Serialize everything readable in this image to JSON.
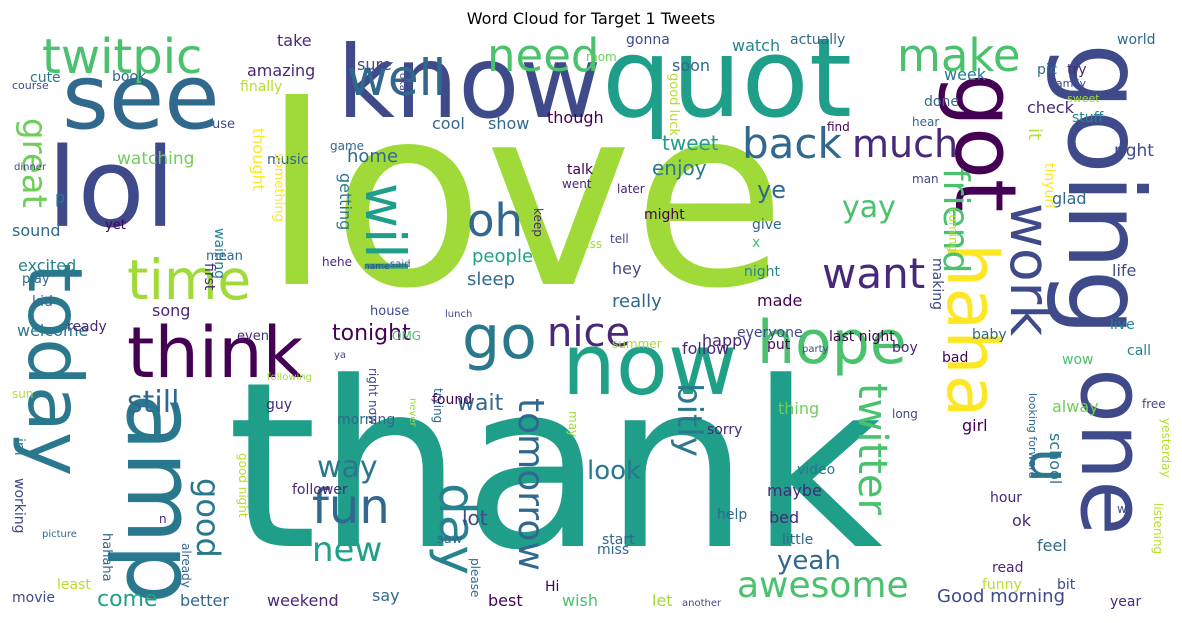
{
  "title": "Word Cloud for Target 1 Tweets",
  "palette": "viridis",
  "words": [
    {
      "text": "love",
      "c": "#a0da39"
    },
    {
      "text": "thank",
      "c": "#1f9e89"
    },
    {
      "text": "quot",
      "c": "#1f9e89"
    },
    {
      "text": "know",
      "c": "#3e4a89"
    },
    {
      "text": "see",
      "c": "#31688e"
    },
    {
      "text": "lol",
      "c": "#3e4a89"
    },
    {
      "text": "now",
      "c": "#1fa187"
    },
    {
      "text": "going",
      "c": "#3e4a89"
    },
    {
      "text": "today",
      "c": "#2a788e"
    },
    {
      "text": "amp",
      "c": "#2a788e"
    },
    {
      "text": "one",
      "c": "#3e4a89"
    },
    {
      "text": "think",
      "c": "#440154"
    },
    {
      "text": "got",
      "c": "#440154"
    },
    {
      "text": "haha",
      "c": "#fde725"
    },
    {
      "text": "time",
      "c": "#a0da39"
    },
    {
      "text": "hope",
      "c": "#4ac16d"
    },
    {
      "text": "twitpic",
      "c": "#4ac16d"
    },
    {
      "text": "work",
      "c": "#3e4a89"
    },
    {
      "text": "u",
      "c": "#2a788e"
    },
    {
      "text": "well",
      "c": "#31688e"
    },
    {
      "text": "need",
      "c": "#4ac16d"
    },
    {
      "text": "make",
      "c": "#4ac16d"
    },
    {
      "text": "back",
      "c": "#31688e"
    },
    {
      "text": "much",
      "c": "#482878"
    },
    {
      "text": "go",
      "c": "#2a788e"
    },
    {
      "text": "will",
      "c": "#1f9e89"
    },
    {
      "text": "oh",
      "c": "#31688e"
    },
    {
      "text": "want",
      "c": "#482878"
    },
    {
      "text": "day",
      "c": "#26828e"
    },
    {
      "text": "fun",
      "c": "#31688e"
    },
    {
      "text": "nice",
      "c": "#482878"
    },
    {
      "text": "awesome",
      "c": "#4ac16d"
    },
    {
      "text": "twitter",
      "c": "#4ac16d"
    },
    {
      "text": "friend",
      "c": "#4ac16d"
    },
    {
      "text": "good",
      "c": "#2a788e"
    },
    {
      "text": "great",
      "c": "#6ece58"
    },
    {
      "text": "tomorrow",
      "c": "#31688e"
    },
    {
      "text": "bitly",
      "c": "#2a788e"
    },
    {
      "text": "yay",
      "c": "#4ac16d"
    },
    {
      "text": "new",
      "c": "#1fa187"
    },
    {
      "text": "way",
      "c": "#2a788e"
    },
    {
      "text": "still",
      "c": "#31688e"
    },
    {
      "text": "tonight",
      "c": "#440154"
    },
    {
      "text": "look",
      "c": "#2a788e"
    },
    {
      "text": "yeah",
      "c": "#31688e"
    },
    {
      "text": "come",
      "c": "#1fa187"
    },
    {
      "text": "wait",
      "c": "#31688e"
    },
    {
      "text": "lot",
      "c": "#3e4a89"
    },
    {
      "text": "Good morning",
      "c": "#3e4a89"
    },
    {
      "text": "cool",
      "c": "#31688e"
    },
    {
      "text": "show",
      "c": "#31688e"
    },
    {
      "text": "though",
      "c": "#440154"
    },
    {
      "text": "tweet",
      "c": "#1f9e89"
    },
    {
      "text": "enjoy",
      "c": "#2a788e"
    },
    {
      "text": "ye",
      "c": "#31688e"
    },
    {
      "text": "people",
      "c": "#1fa187"
    },
    {
      "text": "sleep",
      "c": "#31688e"
    },
    {
      "text": "really",
      "c": "#31688e"
    },
    {
      "text": "hey",
      "c": "#3e4a89"
    },
    {
      "text": "home",
      "c": "#31688e"
    },
    {
      "text": "getting",
      "c": "#2a788e"
    },
    {
      "text": "watching",
      "c": "#6ece58"
    },
    {
      "text": "take",
      "c": "#482878"
    },
    {
      "text": "amazing",
      "c": "#482878"
    },
    {
      "text": "sure",
      "c": "#3e4a89"
    },
    {
      "text": "soon",
      "c": "#31688e"
    },
    {
      "text": "watch",
      "c": "#26828e"
    },
    {
      "text": "actually",
      "c": "#31688e"
    },
    {
      "text": "mom",
      "c": "#6ece58"
    },
    {
      "text": "gonna",
      "c": "#3e4a89"
    },
    {
      "text": "world",
      "c": "#31688e"
    },
    {
      "text": "try",
      "c": "#482878"
    },
    {
      "text": "pic",
      "c": "#31688e"
    },
    {
      "text": "family",
      "c": "#3e4a89"
    },
    {
      "text": "week",
      "c": "#2a788e"
    },
    {
      "text": "done",
      "c": "#31688e"
    },
    {
      "text": "check",
      "c": "#482878"
    },
    {
      "text": "right",
      "c": "#3e4a89"
    },
    {
      "text": "glad",
      "c": "#31688e"
    },
    {
      "text": "life",
      "c": "#3e4a89"
    },
    {
      "text": "song",
      "c": "#482878"
    },
    {
      "text": "happy",
      "c": "#482878"
    },
    {
      "text": "made",
      "c": "#440154"
    },
    {
      "text": "follow",
      "c": "#482878"
    },
    {
      "text": "everyone",
      "c": "#3e4a89"
    },
    {
      "text": "thought",
      "c": "#fde725"
    },
    {
      "text": "sound",
      "c": "#31688e"
    },
    {
      "text": "excited",
      "c": "#26828e"
    },
    {
      "text": "welcome",
      "c": "#2a788e"
    },
    {
      "text": "im",
      "c": "#2a788e"
    },
    {
      "text": "working",
      "c": "#3e4a89"
    },
    {
      "text": "guy",
      "c": "#482878"
    },
    {
      "text": "morning",
      "c": "#31688e"
    },
    {
      "text": "thing",
      "c": "#6ece58"
    },
    {
      "text": "alway",
      "c": "#6ece58"
    },
    {
      "text": "girl",
      "c": "#440154"
    },
    {
      "text": "school",
      "c": "#2a788e"
    },
    {
      "text": "ok",
      "c": "#482878"
    },
    {
      "text": "feel",
      "c": "#31688e"
    },
    {
      "text": "maybe",
      "c": "#482878"
    },
    {
      "text": "bed",
      "c": "#482878"
    },
    {
      "text": "better",
      "c": "#31688e"
    },
    {
      "text": "weekend",
      "c": "#482878"
    },
    {
      "text": "say",
      "c": "#31688e"
    },
    {
      "text": "best",
      "c": "#440154"
    },
    {
      "text": "wish",
      "c": "#4ac16d"
    },
    {
      "text": "let",
      "c": "#a0da39"
    },
    {
      "text": "p",
      "c": "#2a788e"
    },
    {
      "text": "it",
      "c": "#b5de2b"
    },
    {
      "text": "x",
      "c": "#4ac16d"
    },
    {
      "text": "music",
      "c": "#31688e"
    },
    {
      "text": "game",
      "c": "#31688e"
    },
    {
      "text": "talk",
      "c": "#440154"
    },
    {
      "text": "went",
      "c": "#482878"
    },
    {
      "text": "later",
      "c": "#482878"
    },
    {
      "text": "might",
      "c": "#440154"
    },
    {
      "text": "give",
      "c": "#31688e"
    },
    {
      "text": "keep",
      "c": "#482878"
    },
    {
      "text": "tell",
      "c": "#3e4a89"
    },
    {
      "text": "guess",
      "c": "#a0da39"
    },
    {
      "text": "night",
      "c": "#26828e"
    },
    {
      "text": "find",
      "c": "#440154"
    },
    {
      "text": "hear",
      "c": "#31688e"
    },
    {
      "text": "stuff",
      "c": "#26828e"
    },
    {
      "text": "sweet",
      "c": "#a0da39"
    },
    {
      "text": "man",
      "c": "#3e4a89"
    },
    {
      "text": "tinyurl",
      "c": "#fde725"
    },
    {
      "text": "finally",
      "c": "#b5de2b"
    },
    {
      "text": "cute",
      "c": "#2a788e"
    },
    {
      "text": "book",
      "c": "#31688e"
    },
    {
      "text": "course",
      "c": "#3e4a89"
    },
    {
      "text": "use",
      "c": "#3e4a89"
    },
    {
      "text": "yet",
      "c": "#440154"
    },
    {
      "text": "dinner",
      "c": "#3e4a89"
    },
    {
      "text": "waiting",
      "c": "#26828e"
    },
    {
      "text": "first",
      "c": "#482878"
    },
    {
      "text": "mean",
      "c": "#31688e"
    },
    {
      "text": "play",
      "c": "#31688e"
    },
    {
      "text": "something",
      "c": "#fde725"
    },
    {
      "text": "hehe",
      "c": "#482878"
    },
    {
      "text": "name",
      "c": "#3e4a89"
    },
    {
      "text": "said",
      "c": "#3e4a89"
    },
    {
      "text": "lunch",
      "c": "#3e4a89"
    },
    {
      "text": "kid",
      "c": "#31688e"
    },
    {
      "text": "ready",
      "c": "#482878"
    },
    {
      "text": "even",
      "c": "#482878"
    },
    {
      "text": "OMG",
      "c": "#4ac16d"
    },
    {
      "text": "summer",
      "c": "#a0da39"
    },
    {
      "text": "put",
      "c": "#440154"
    },
    {
      "text": "party",
      "c": "#3e4a89"
    },
    {
      "text": "house",
      "c": "#3e4a89"
    },
    {
      "text": "ya",
      "c": "#3e4a89"
    },
    {
      "text": "last night",
      "c": "#440154"
    },
    {
      "text": "boy",
      "c": "#482878"
    },
    {
      "text": "bad",
      "c": "#440154"
    },
    {
      "text": "baby",
      "c": "#31688e"
    },
    {
      "text": "live",
      "c": "#26828e"
    },
    {
      "text": "call",
      "c": "#26828e"
    },
    {
      "text": "wow",
      "c": "#4ac16d"
    },
    {
      "text": "making",
      "c": "#3e4a89"
    },
    {
      "text": "coming",
      "c": "#b5de2b"
    },
    {
      "text": "good luck",
      "c": "#b5de2b"
    },
    {
      "text": "okay",
      "c": "#3e4a89"
    },
    {
      "text": "sun",
      "c": "#b5de2b"
    },
    {
      "text": "following",
      "c": "#a0da39"
    },
    {
      "text": "right now",
      "c": "#3e4a89"
    },
    {
      "text": "trying",
      "c": "#31688e"
    },
    {
      "text": "found",
      "c": "#440154"
    },
    {
      "text": "never",
      "c": "#a0da39"
    },
    {
      "text": "sorry",
      "c": "#482878"
    },
    {
      "text": "may",
      "c": "#a0da39"
    },
    {
      "text": "long",
      "c": "#3e4a89"
    },
    {
      "text": "free",
      "c": "#3e4a89"
    },
    {
      "text": "looking forward",
      "c": "#31688e"
    },
    {
      "text": "yesterday",
      "c": "#b5de2b"
    },
    {
      "text": "listening",
      "c": "#b5de2b"
    },
    {
      "text": "hour",
      "c": "#482878"
    },
    {
      "text": "w",
      "c": "#3e4a89"
    },
    {
      "text": "video",
      "c": "#2a788e"
    },
    {
      "text": "help",
      "c": "#31688e"
    },
    {
      "text": "follower",
      "c": "#482878"
    },
    {
      "text": "little",
      "c": "#31688e"
    },
    {
      "text": "start",
      "c": "#31688e"
    },
    {
      "text": "miss",
      "c": "#31688e"
    },
    {
      "text": "please",
      "c": "#31688e"
    },
    {
      "text": "Hi",
      "c": "#440154"
    },
    {
      "text": "another",
      "c": "#3e4a89"
    },
    {
      "text": "read",
      "c": "#482878"
    },
    {
      "text": "funny",
      "c": "#b5de2b"
    },
    {
      "text": "bit",
      "c": "#3e4a89"
    },
    {
      "text": "year",
      "c": "#482878"
    },
    {
      "text": "good night",
      "c": "#b5de2b"
    },
    {
      "text": "hahaha",
      "c": "#31688e"
    },
    {
      "text": "n",
      "c": "#482878"
    },
    {
      "text": "already",
      "c": "#31688e"
    },
    {
      "text": "picture",
      "c": "#31688e"
    },
    {
      "text": "saw",
      "c": "#31688e"
    },
    {
      "text": "least",
      "c": "#b5de2b"
    },
    {
      "text": "movie",
      "c": "#3e4a89"
    }
  ]
}
